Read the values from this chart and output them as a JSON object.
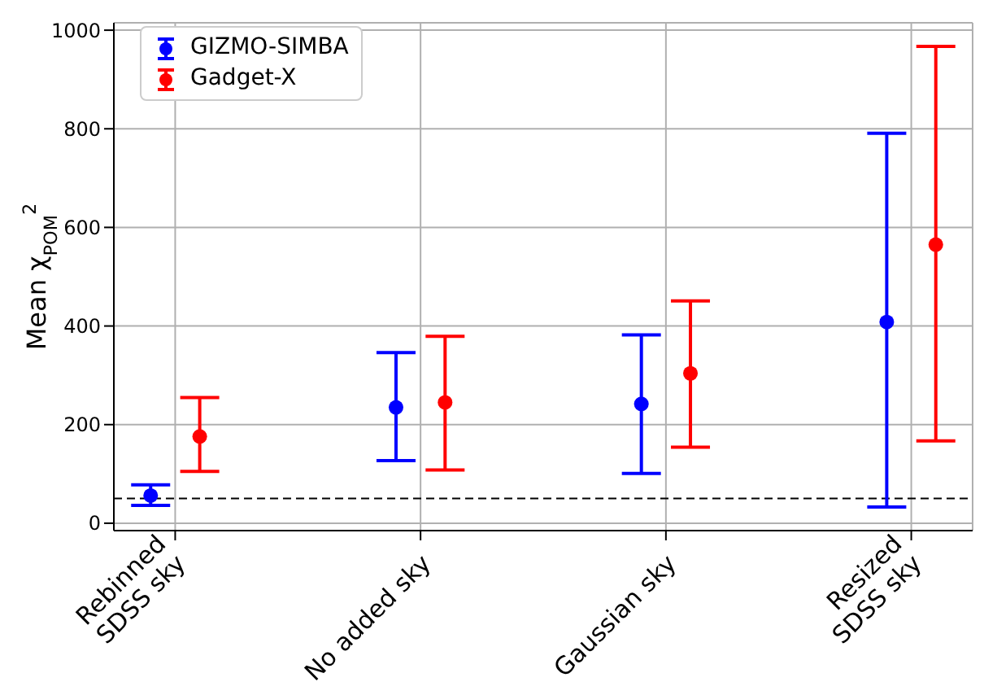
{
  "chart_data": {
    "type": "scatter",
    "ylabel": "Mean χ$_{POM}$$^{2}$",
    "categories": [
      "Rebinned\nSDSS sky",
      "No added sky",
      "Gaussian sky",
      "Resized\nSDSS sky"
    ],
    "series": [
      {
        "name": "GIZMO-SIMBA",
        "color": "#0000ff",
        "values": [
          56,
          235,
          242,
          408
        ],
        "errors": [
          [
            36,
            78
          ],
          [
            127,
            346
          ],
          [
            101,
            382
          ],
          [
            33,
            791
          ]
        ]
      },
      {
        "name": "Gadget-X",
        "color": "#ff0000",
        "values": [
          176,
          245,
          304,
          565
        ],
        "errors": [
          [
            105,
            255
          ],
          [
            108,
            379
          ],
          [
            154,
            451
          ],
          [
            167,
            967
          ]
        ]
      }
    ],
    "ylim": [
      -15,
      1015
    ],
    "yticks": [
      0,
      200,
      400,
      600,
      800,
      1000
    ],
    "grid": true,
    "legend": "top left",
    "marker": "circle",
    "ref_lines": [
      {
        "axis": "y",
        "value": 50,
        "color": "#000000",
        "line_style": "dashed"
      }
    ]
  }
}
